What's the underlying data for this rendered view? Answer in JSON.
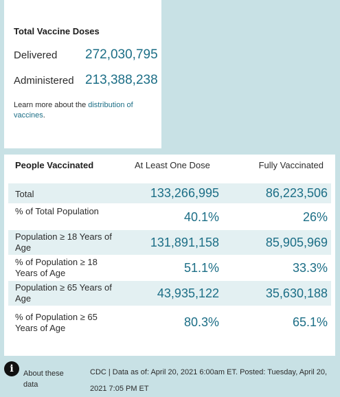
{
  "doses": {
    "title": "Total Vaccine Doses",
    "delivered_label": "Delivered",
    "delivered_value": "272,030,795",
    "administered_label": "Administered",
    "administered_value": "213,388,238",
    "learn_prefix": "Learn more about the ",
    "learn_link": "distribution of vaccines",
    "learn_suffix": "."
  },
  "people": {
    "title": "People Vaccinated",
    "col1": "At Least One Dose",
    "col2": "Fully Vaccinated",
    "rows": [
      {
        "label": "Total",
        "one_dose": "133,266,995",
        "fully": "86,223,506"
      },
      {
        "label": "% of Total Population",
        "one_dose": "40.1%",
        "fully": "26%"
      },
      {
        "label": "Population ≥ 18 Years of Age",
        "one_dose": "131,891,158",
        "fully": "85,905,969"
      },
      {
        "label": "% of Population ≥ 18 Years of Age",
        "one_dose": "51.1%",
        "fully": "33.3%"
      },
      {
        "label": "Population ≥ 65 Years of Age",
        "one_dose": "43,935,122",
        "fully": "35,630,188"
      },
      {
        "label": "% of Population ≥ 65 Years of Age",
        "one_dose": "80.3%",
        "fully": "65.1%"
      }
    ]
  },
  "footer": {
    "icon": "info-icon",
    "about": "About these data",
    "source": "CDC | Data as of: April 20, 2021 6:00am ET. Posted: Tuesday, April 20, 2021 7:05 PM ET"
  },
  "colors": {
    "background": "#c8e1e5",
    "accent": "#1c6e86",
    "row_shade": "#e3f0f2"
  }
}
